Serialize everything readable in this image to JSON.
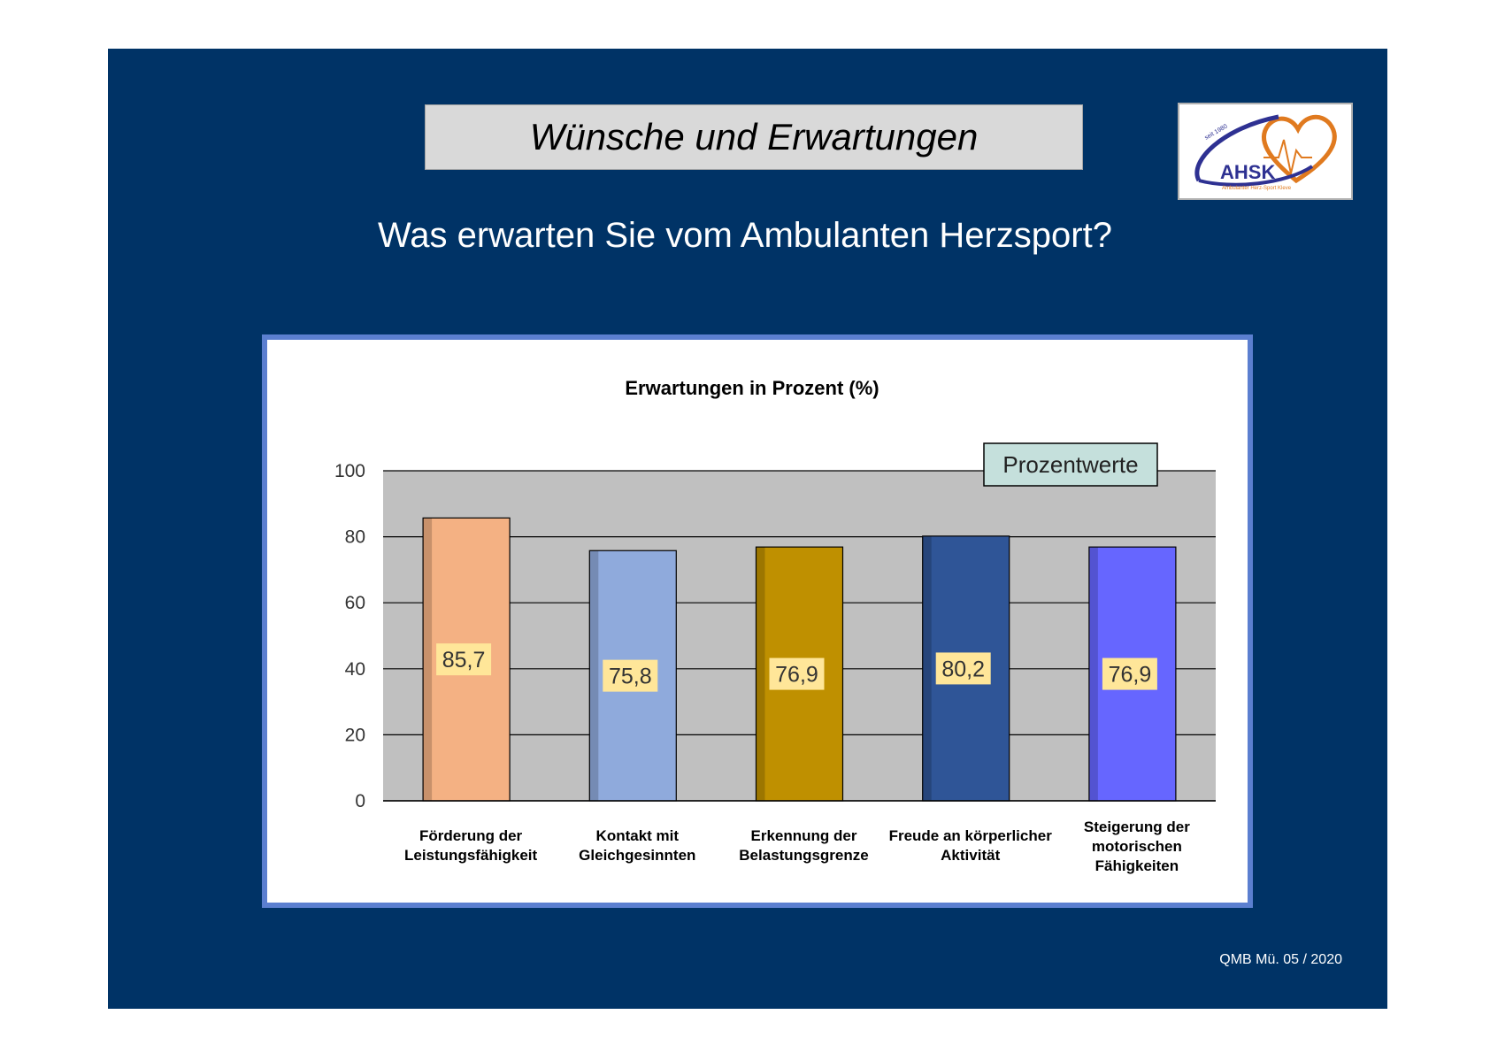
{
  "slide": {
    "title": "Wünsche und Erwartungen",
    "question": "Was erwarten Sie vom Ambulanten Herzsport?",
    "footer": "QMB Mü. 05 / 2020",
    "background_color": "#003366"
  },
  "logo": {
    "text": "AHSK",
    "subtitle": "Ambulanter Herz-Sport Kleve",
    "since": "seit 1980",
    "icon": "heart-ecg-icon"
  },
  "chart_data": {
    "type": "bar",
    "title": "Erwartungen in Prozent (%)",
    "legend": {
      "label": "Prozentwerte",
      "placement": "top-right"
    },
    "categories": [
      [
        "Förderung der",
        "Leistungsfähigkeit"
      ],
      [
        "Kontakt mit",
        "Gleichgesinnten"
      ],
      [
        "Erkennung der",
        "Belastungsgrenze"
      ],
      [
        "Freude an körperlicher",
        "Aktivität"
      ],
      [
        "Steigerung der",
        "motorischen",
        "Fähigkeiten"
      ]
    ],
    "values": [
      85.7,
      75.8,
      76.9,
      80.2,
      76.9
    ],
    "value_labels": [
      "85,7",
      "75,8",
      "76,9",
      "80,2",
      "76,9"
    ],
    "colors": [
      "#f4b183",
      "#8faadc",
      "#bf9000",
      "#2f5597",
      "#6666ff"
    ],
    "ylim": [
      0,
      100
    ],
    "yticks": [
      "0",
      "20",
      "40",
      "60",
      "80",
      "100"
    ],
    "grid": true,
    "plot_background": "#c0c0c0",
    "label_background": "#ffe699"
  }
}
